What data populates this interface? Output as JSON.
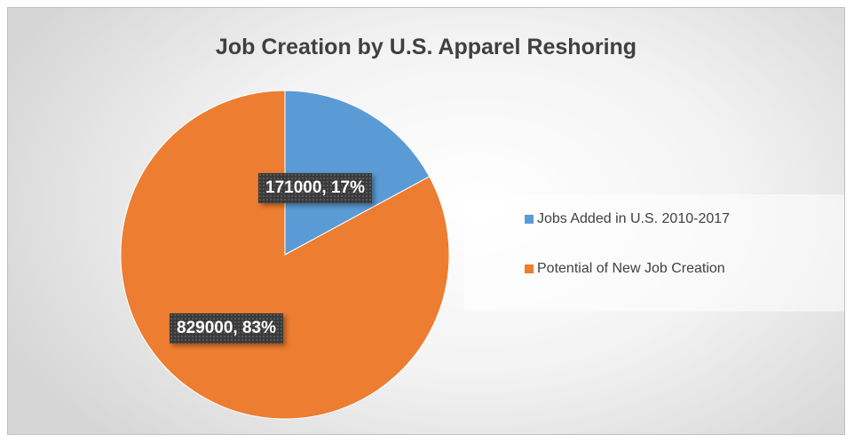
{
  "chart_data": {
    "type": "pie",
    "title": "Job Creation by U.S. Apparel Reshoring",
    "categories": [
      "Jobs Added in U.S. 2010-2017",
      "Potential of New Job Creation"
    ],
    "values": [
      171000,
      829000
    ],
    "percent_labels": [
      "17%",
      "83%"
    ],
    "data_labels": [
      "171000, 17%",
      "829000, 83%"
    ],
    "colors": [
      "#5B9BD5",
      "#ED7D31"
    ],
    "legend_position": "right",
    "start_angle": "12 o'clock, clockwise"
  }
}
